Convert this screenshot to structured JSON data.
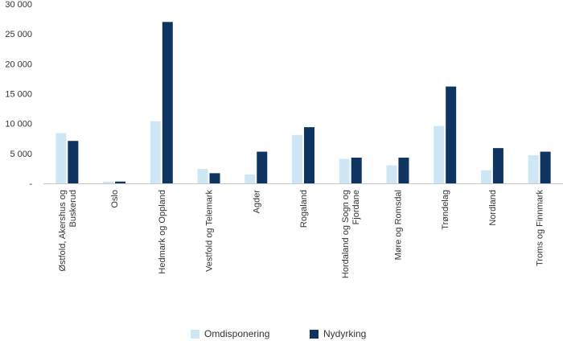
{
  "chart_data": {
    "type": "bar",
    "categories": [
      [
        "Østfold, Akershus og",
        "Buskerud"
      ],
      [
        "Oslo"
      ],
      [
        "Hedmark og Oppland"
      ],
      [
        "Vestfold og Telemark"
      ],
      [
        "Agder"
      ],
      [
        "Rogaland"
      ],
      [
        "Hordaland og Sogn og",
        "Fjordane"
      ],
      [
        "Møre og Romsdal"
      ],
      [
        "Trøndelag"
      ],
      [
        "Nordland"
      ],
      [
        "Troms og Finnmark"
      ]
    ],
    "series": [
      {
        "name": "Omdisponering",
        "color": "#cfe6f5",
        "values": [
          8400,
          300,
          10400,
          2400,
          1500,
          8100,
          4100,
          3000,
          9600,
          2200,
          4700
        ]
      },
      {
        "name": "Nydyrking",
        "color": "#0f3461",
        "values": [
          7100,
          300,
          27000,
          1700,
          5300,
          9400,
          4300,
          4300,
          16200,
          5900,
          5300
        ]
      }
    ],
    "ylim": [
      0,
      30000
    ],
    "yticks": [
      0,
      5000,
      10000,
      15000,
      20000,
      25000,
      30000
    ],
    "ytick_labels": [
      "-",
      "5 000",
      "10 000",
      "15 000",
      "20 000",
      "25 000",
      "30 000"
    ],
    "grid": false,
    "legend": "bottom-center",
    "title": "",
    "xlabel": "",
    "ylabel": ""
  }
}
